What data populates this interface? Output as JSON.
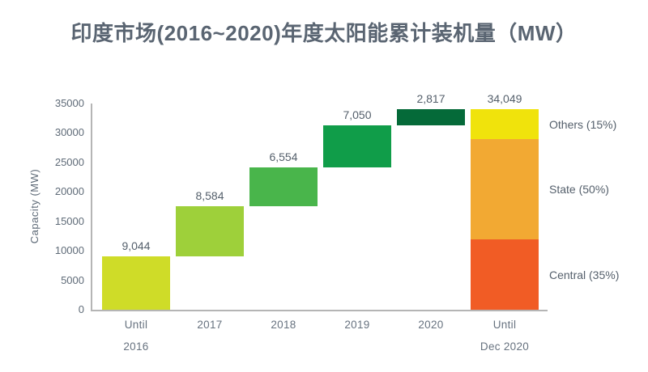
{
  "chart_data": {
    "type": "waterfall-bar",
    "title": "印度市场(2016~2020)年度太阳能累计装机量（MW）",
    "title_color": "#5a6572",
    "ylabel": "Capacity (MW)",
    "ylim": [
      0,
      35000
    ],
    "ytick_step": 5000,
    "ytick_labels": [
      "0",
      "5000",
      "10000",
      "15000",
      "20000",
      "25000",
      "30000",
      "35000"
    ],
    "axis_color": "#b5b5b5",
    "text_color": "#5f6b78",
    "grid": false,
    "legend_position": "right-of-total-bar",
    "bars": [
      {
        "category": [
          "Until",
          "2016"
        ],
        "value": 9044,
        "value_label": "9,044",
        "start": 0,
        "end": 9044,
        "color": "#cfdc28"
      },
      {
        "category": [
          "2017"
        ],
        "value": 8584,
        "value_label": "8,584",
        "start": 9044,
        "end": 17628,
        "color": "#9ed03a"
      },
      {
        "category": [
          "2018"
        ],
        "value": 6554,
        "value_label": "6,554",
        "start": 17628,
        "end": 24182,
        "color": "#49b54b"
      },
      {
        "category": [
          "2019"
        ],
        "value": 7050,
        "value_label": "7,050",
        "start": 24182,
        "end": 31232,
        "color": "#109d49"
      },
      {
        "category": [
          "2020"
        ],
        "value": 2817,
        "value_label": "2,817",
        "start": 31232,
        "end": 34049,
        "color": "#056a39"
      },
      {
        "category": [
          "Until",
          "Dec 2020"
        ],
        "value": 34049,
        "value_label": "34,049",
        "start": 0,
        "end": 34049,
        "is_total": true,
        "segments": [
          {
            "label": "Central (35%)",
            "fraction": 0.35,
            "color": "#f15c25"
          },
          {
            "label": "State (50%)",
            "fraction": 0.5,
            "color": "#f2a933"
          },
          {
            "label": "Others (15%)",
            "fraction": 0.15,
            "color": "#f0e30c"
          }
        ]
      }
    ]
  }
}
